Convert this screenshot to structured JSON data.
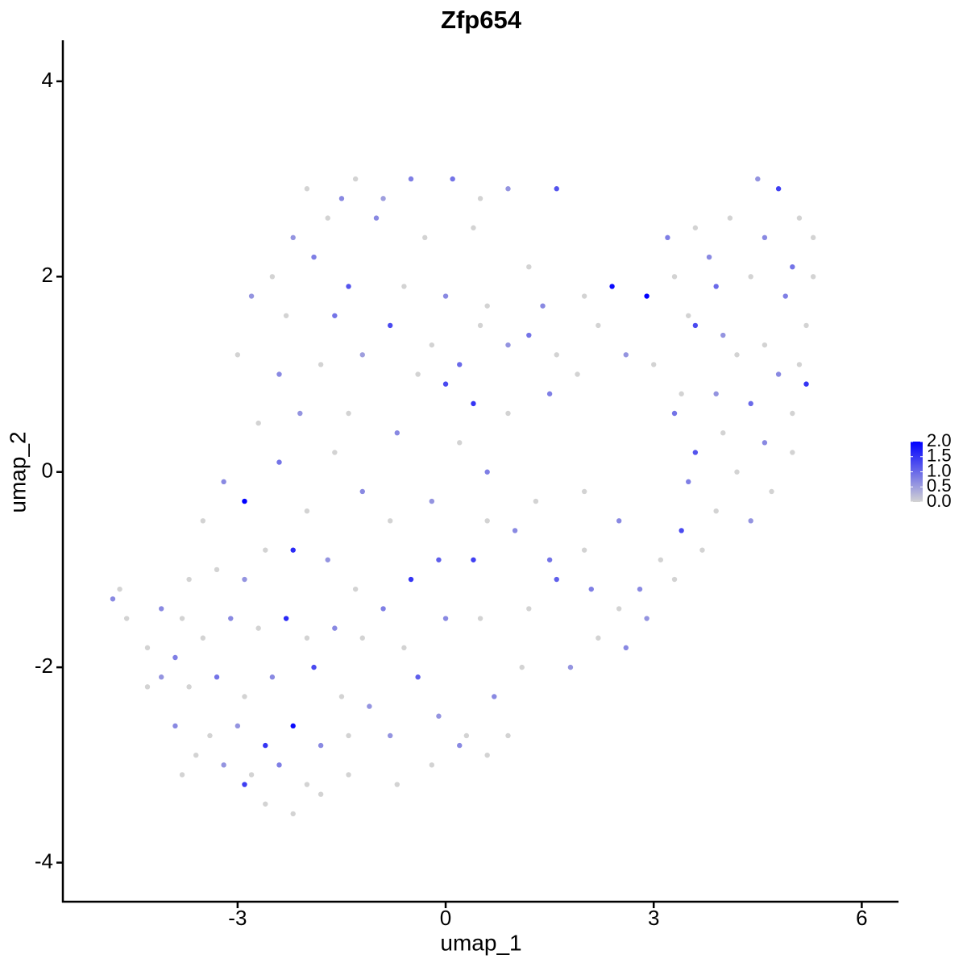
{
  "chart_data": {
    "type": "scatter",
    "title": "Zfp654",
    "xlabel": "umap_1",
    "ylabel": "umap_2",
    "xlim": [
      -5.52,
      6.53
    ],
    "ylim": [
      -4.4,
      4.42
    ],
    "xticks": [
      -3,
      0,
      3,
      6
    ],
    "yticks": [
      -4,
      -2,
      0,
      2,
      4
    ],
    "colorlim": [
      0,
      2
    ],
    "colors": [
      "#d3d3d3",
      "#0000ff"
    ],
    "colorticks": [
      {
        "value": 0,
        "label": "0.0"
      },
      {
        "value": 0.5,
        "label": "0.5"
      },
      {
        "value": 1,
        "label": "1.0"
      },
      {
        "value": 1.5,
        "label": "1.5"
      },
      {
        "value": 2,
        "label": "2.0"
      }
    ],
    "points": [
      [
        -1.3,
        3.0,
        0
      ],
      [
        -0.5,
        3.0,
        0.8
      ],
      [
        0.1,
        3.0,
        0.9
      ],
      [
        -0.9,
        2.8,
        0.5
      ],
      [
        0.5,
        2.8,
        0
      ],
      [
        0.9,
        2.9,
        0.6
      ],
      [
        -2.0,
        2.9,
        0
      ],
      [
        -1.5,
        2.8,
        0.7
      ],
      [
        1.6,
        2.9,
        1.2
      ],
      [
        -2.2,
        2.4,
        0.6
      ],
      [
        -1.7,
        2.6,
        0
      ],
      [
        -1.0,
        2.6,
        0.7
      ],
      [
        -0.3,
        2.4,
        0
      ],
      [
        0.4,
        2.5,
        0
      ],
      [
        1.2,
        2.1,
        0
      ],
      [
        -2.5,
        2.0,
        0
      ],
      [
        -1.9,
        2.2,
        0.8
      ],
      [
        -1.4,
        1.9,
        1.2
      ],
      [
        -0.6,
        1.9,
        0
      ],
      [
        0.0,
        1.8,
        0.7
      ],
      [
        0.6,
        1.7,
        0
      ],
      [
        -2.8,
        1.8,
        0.6
      ],
      [
        -2.3,
        1.6,
        0
      ],
      [
        -1.6,
        1.6,
        0.9
      ],
      [
        -0.8,
        1.5,
        1.3
      ],
      [
        -0.2,
        1.3,
        0
      ],
      [
        0.5,
        1.5,
        0
      ],
      [
        -3.0,
        1.2,
        0
      ],
      [
        -2.4,
        1.0,
        0.7
      ],
      [
        -1.8,
        1.1,
        0
      ],
      [
        -1.2,
        1.2,
        0.5
      ],
      [
        -0.4,
        1.0,
        0
      ],
      [
        0.2,
        1.1,
        1.0
      ],
      [
        0.9,
        1.3,
        0.6
      ],
      [
        1.2,
        1.4,
        0.9
      ],
      [
        1.6,
        1.2,
        0
      ],
      [
        -2.7,
        0.5,
        0
      ],
      [
        -2.1,
        0.6,
        0.6
      ],
      [
        -1.4,
        0.6,
        0
      ],
      [
        -0.7,
        0.4,
        0.7
      ],
      [
        0.0,
        0.9,
        1.3
      ],
      [
        0.4,
        0.7,
        1.5
      ],
      [
        0.9,
        0.6,
        0
      ],
      [
        1.5,
        0.8,
        0.8
      ],
      [
        1.9,
        1.0,
        0
      ],
      [
        1.4,
        1.7,
        0.7
      ],
      [
        2.0,
        1.8,
        0
      ],
      [
        2.4,
        1.9,
        1.9
      ],
      [
        2.9,
        1.8,
        2.0
      ],
      [
        2.2,
        1.5,
        0
      ],
      [
        2.6,
        1.2,
        0.6
      ],
      [
        3.2,
        2.4,
        0.8
      ],
      [
        3.6,
        2.5,
        0
      ],
      [
        4.1,
        2.6,
        0
      ],
      [
        4.5,
        3.0,
        0.6
      ],
      [
        4.8,
        2.9,
        1.4
      ],
      [
        5.1,
        2.6,
        0
      ],
      [
        5.3,
        2.4,
        0
      ],
      [
        4.6,
        2.4,
        0.7
      ],
      [
        5.0,
        2.1,
        0.9
      ],
      [
        5.3,
        2.0,
        0
      ],
      [
        3.8,
        2.2,
        0.7
      ],
      [
        3.3,
        2.0,
        0
      ],
      [
        3.9,
        1.9,
        1.0
      ],
      [
        4.4,
        2.0,
        0
      ],
      [
        4.9,
        1.8,
        0.8
      ],
      [
        5.2,
        1.5,
        0
      ],
      [
        3.5,
        1.6,
        0
      ],
      [
        4.0,
        1.4,
        0.6
      ],
      [
        4.6,
        1.3,
        0
      ],
      [
        5.1,
        1.1,
        0
      ],
      [
        3.6,
        1.5,
        1.3
      ],
      [
        4.2,
        1.2,
        0
      ],
      [
        4.8,
        1.0,
        0.7
      ],
      [
        5.2,
        0.9,
        1.5
      ],
      [
        3.0,
        1.1,
        0
      ],
      [
        3.4,
        0.8,
        0
      ],
      [
        3.9,
        0.8,
        0.6
      ],
      [
        4.4,
        0.7,
        1.0
      ],
      [
        5.0,
        0.6,
        0
      ],
      [
        3.3,
        0.6,
        0.9
      ],
      [
        4.0,
        0.4,
        0
      ],
      [
        4.6,
        0.3,
        0.7
      ],
      [
        5.0,
        0.2,
        0
      ],
      [
        3.6,
        0.2,
        1.2
      ],
      [
        4.2,
        0.0,
        0
      ],
      [
        4.7,
        -0.2,
        0
      ],
      [
        3.5,
        -0.1,
        0.8
      ],
      [
        3.9,
        -0.4,
        0
      ],
      [
        4.4,
        -0.5,
        0.6
      ],
      [
        3.4,
        -0.6,
        1.3
      ],
      [
        3.1,
        -0.9,
        0
      ],
      [
        3.7,
        -0.8,
        0
      ],
      [
        2.8,
        -1.2,
        0.7
      ],
      [
        3.3,
        -1.1,
        0
      ],
      [
        2.5,
        -1.4,
        0
      ],
      [
        2.9,
        -1.5,
        0.6
      ],
      [
        2.2,
        -1.7,
        0
      ],
      [
        2.6,
        -1.8,
        0.7
      ],
      [
        1.8,
        -2.0,
        0.6
      ],
      [
        2.1,
        -1.2,
        0.8
      ],
      [
        1.6,
        -1.1,
        1.1
      ],
      [
        1.2,
        -1.4,
        0
      ],
      [
        1.5,
        -0.9,
        0.9
      ],
      [
        2.0,
        -0.8,
        0
      ],
      [
        2.5,
        -0.5,
        0.7
      ],
      [
        2.0,
        -0.2,
        0
      ],
      [
        1.0,
        -0.6,
        0.7
      ],
      [
        0.6,
        -0.5,
        0
      ],
      [
        1.3,
        -0.3,
        0
      ],
      [
        0.4,
        -0.9,
        1.4
      ],
      [
        0.5,
        -1.5,
        0
      ],
      [
        1.1,
        -2.0,
        0
      ],
      [
        0.7,
        -2.3,
        0.7
      ],
      [
        0.3,
        -2.7,
        0
      ],
      [
        0.9,
        -2.7,
        0
      ],
      [
        -0.1,
        -2.5,
        0.6
      ],
      [
        -0.4,
        -2.1,
        1.1
      ],
      [
        -0.2,
        -3.0,
        0
      ],
      [
        -0.8,
        -2.7,
        0.6
      ],
      [
        -0.6,
        -1.8,
        0
      ],
      [
        0.0,
        -1.5,
        0.7
      ],
      [
        -0.5,
        -1.1,
        1.5
      ],
      [
        -0.1,
        -0.9,
        1.1
      ],
      [
        0.6,
        0.0,
        0.8
      ],
      [
        0.2,
        0.3,
        0
      ],
      [
        -0.2,
        -0.3,
        0.6
      ],
      [
        -0.8,
        -0.5,
        0
      ],
      [
        -1.2,
        -0.2,
        0.7
      ],
      [
        -1.6,
        0.2,
        0
      ],
      [
        -2.0,
        -0.4,
        0
      ],
      [
        -2.4,
        0.1,
        0.9
      ],
      [
        -2.9,
        -0.3,
        2.0
      ],
      [
        -3.2,
        -0.1,
        0.7
      ],
      [
        -3.5,
        -0.5,
        0
      ],
      [
        -2.6,
        -0.8,
        0
      ],
      [
        -2.2,
        -0.8,
        1.6
      ],
      [
        -1.7,
        -0.9,
        0.6
      ],
      [
        -1.3,
        -1.2,
        0
      ],
      [
        -0.9,
        -1.4,
        0.8
      ],
      [
        -2.9,
        -1.1,
        0.6
      ],
      [
        -3.3,
        -1.0,
        0
      ],
      [
        -3.7,
        -1.1,
        0
      ],
      [
        -4.7,
        -1.2,
        0
      ],
      [
        -4.8,
        -1.3,
        0.7
      ],
      [
        -4.6,
        -1.5,
        0
      ],
      [
        -4.1,
        -1.4,
        0.7
      ],
      [
        -3.8,
        -1.5,
        0
      ],
      [
        -4.3,
        -1.8,
        0
      ],
      [
        -3.9,
        -1.9,
        0.8
      ],
      [
        -3.5,
        -1.7,
        0
      ],
      [
        -3.1,
        -1.5,
        0.7
      ],
      [
        -2.7,
        -1.6,
        0
      ],
      [
        -2.3,
        -1.5,
        1.6
      ],
      [
        -2.0,
        -1.7,
        0
      ],
      [
        -1.6,
        -1.6,
        0.7
      ],
      [
        -1.2,
        -1.7,
        0
      ],
      [
        -4.1,
        -2.1,
        0.6
      ],
      [
        -3.7,
        -2.2,
        0
      ],
      [
        -3.3,
        -2.1,
        0.9
      ],
      [
        -2.9,
        -2.3,
        0
      ],
      [
        -2.5,
        -2.1,
        0.7
      ],
      [
        -1.9,
        -2.0,
        1.3
      ],
      [
        -1.5,
        -2.3,
        0
      ],
      [
        -1.1,
        -2.4,
        0.6
      ],
      [
        -3.9,
        -2.6,
        0.7
      ],
      [
        -3.4,
        -2.7,
        0
      ],
      [
        -3.0,
        -2.6,
        0.6
      ],
      [
        -2.6,
        -2.8,
        1.5
      ],
      [
        -2.2,
        -2.6,
        1.9
      ],
      [
        -1.8,
        -2.8,
        0.7
      ],
      [
        -1.4,
        -2.7,
        0
      ],
      [
        -3.6,
        -2.9,
        0
      ],
      [
        -3.2,
        -3.0,
        0.6
      ],
      [
        -2.8,
        -3.1,
        0
      ],
      [
        -2.4,
        -3.0,
        0.8
      ],
      [
        -2.0,
        -3.2,
        0
      ],
      [
        -2.9,
        -3.2,
        1.4
      ],
      [
        -2.6,
        -3.4,
        0
      ],
      [
        -2.2,
        -3.5,
        0
      ],
      [
        -1.4,
        -3.1,
        0
      ],
      [
        -1.8,
        -3.3,
        0
      ],
      [
        -4.3,
        -2.2,
        0
      ],
      [
        -3.8,
        -3.1,
        0
      ],
      [
        -0.7,
        -3.2,
        0
      ],
      [
        0.2,
        -2.8,
        0.7
      ],
      [
        0.6,
        -2.9,
        0
      ]
    ]
  }
}
